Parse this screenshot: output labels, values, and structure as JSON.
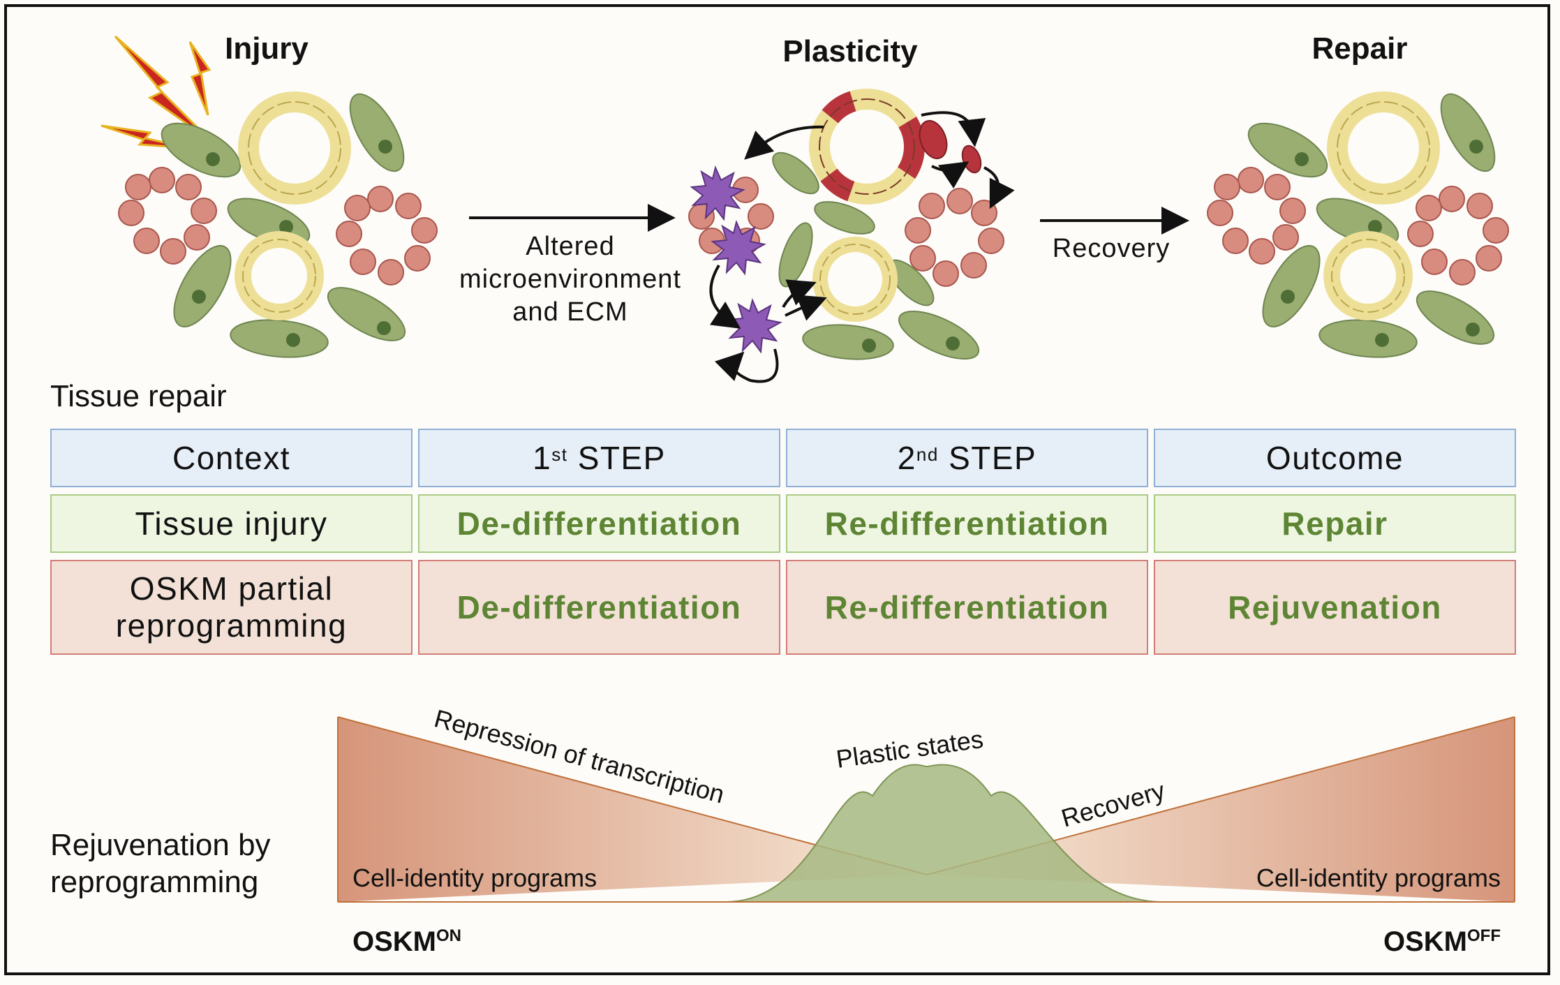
{
  "stages": {
    "injury": "Injury",
    "plasticity": "Plasticity",
    "repair": "Repair"
  },
  "arrows": {
    "first_label_line1": "Altered",
    "first_label_line2": "microenvironment",
    "first_label_line3": "and ECM",
    "second_label": "Recovery"
  },
  "section_titles": {
    "tissue_repair": "Tissue repair",
    "rejuvenation_line1": "Rejuvenation by",
    "rejuvenation_line2": "reprogramming"
  },
  "table": {
    "header": {
      "context": "Context",
      "step1_num": "1",
      "step1_sup": "st",
      "step1_word": "STEP",
      "step2_num": "2",
      "step2_sup": "nd",
      "step2_word": "STEP",
      "outcome": "Outcome"
    },
    "row_injury": {
      "context": "Tissue injury",
      "step1": "De-differentiation",
      "step2": "Re-differentiation",
      "outcome": "Repair"
    },
    "row_oskm": {
      "context_line1": "OSKM partial",
      "context_line2": "reprogramming",
      "step1": "De-differentiation",
      "step2": "Re-differentiation",
      "outcome": "Rejuvenation"
    }
  },
  "curve": {
    "repression": "Repression of transcription",
    "plastic": "Plastic states",
    "recovery": "Recovery",
    "left_programs": "Cell-identity programs",
    "right_programs": "Cell-identity programs",
    "oskm_on_base": "OSKM",
    "oskm_on_sup": "ON",
    "oskm_off_base": "OSKM",
    "oskm_off_sup": "OFF"
  },
  "colors": {
    "fibroblast": "#9aae72",
    "epithelial_ring": "#eedf96",
    "round_cell": "#d88c80",
    "immune_cell": "#8d5bb5",
    "damaged_cell": "#b8343c",
    "lightning": "#c9261f",
    "header_fill": "#e6eef7",
    "green_fill": "#eef6e2",
    "red_fill": "#f3e1d7",
    "green_text": "#5d8534",
    "wedge": "#d99a7a",
    "bell": "#9fb37a"
  }
}
